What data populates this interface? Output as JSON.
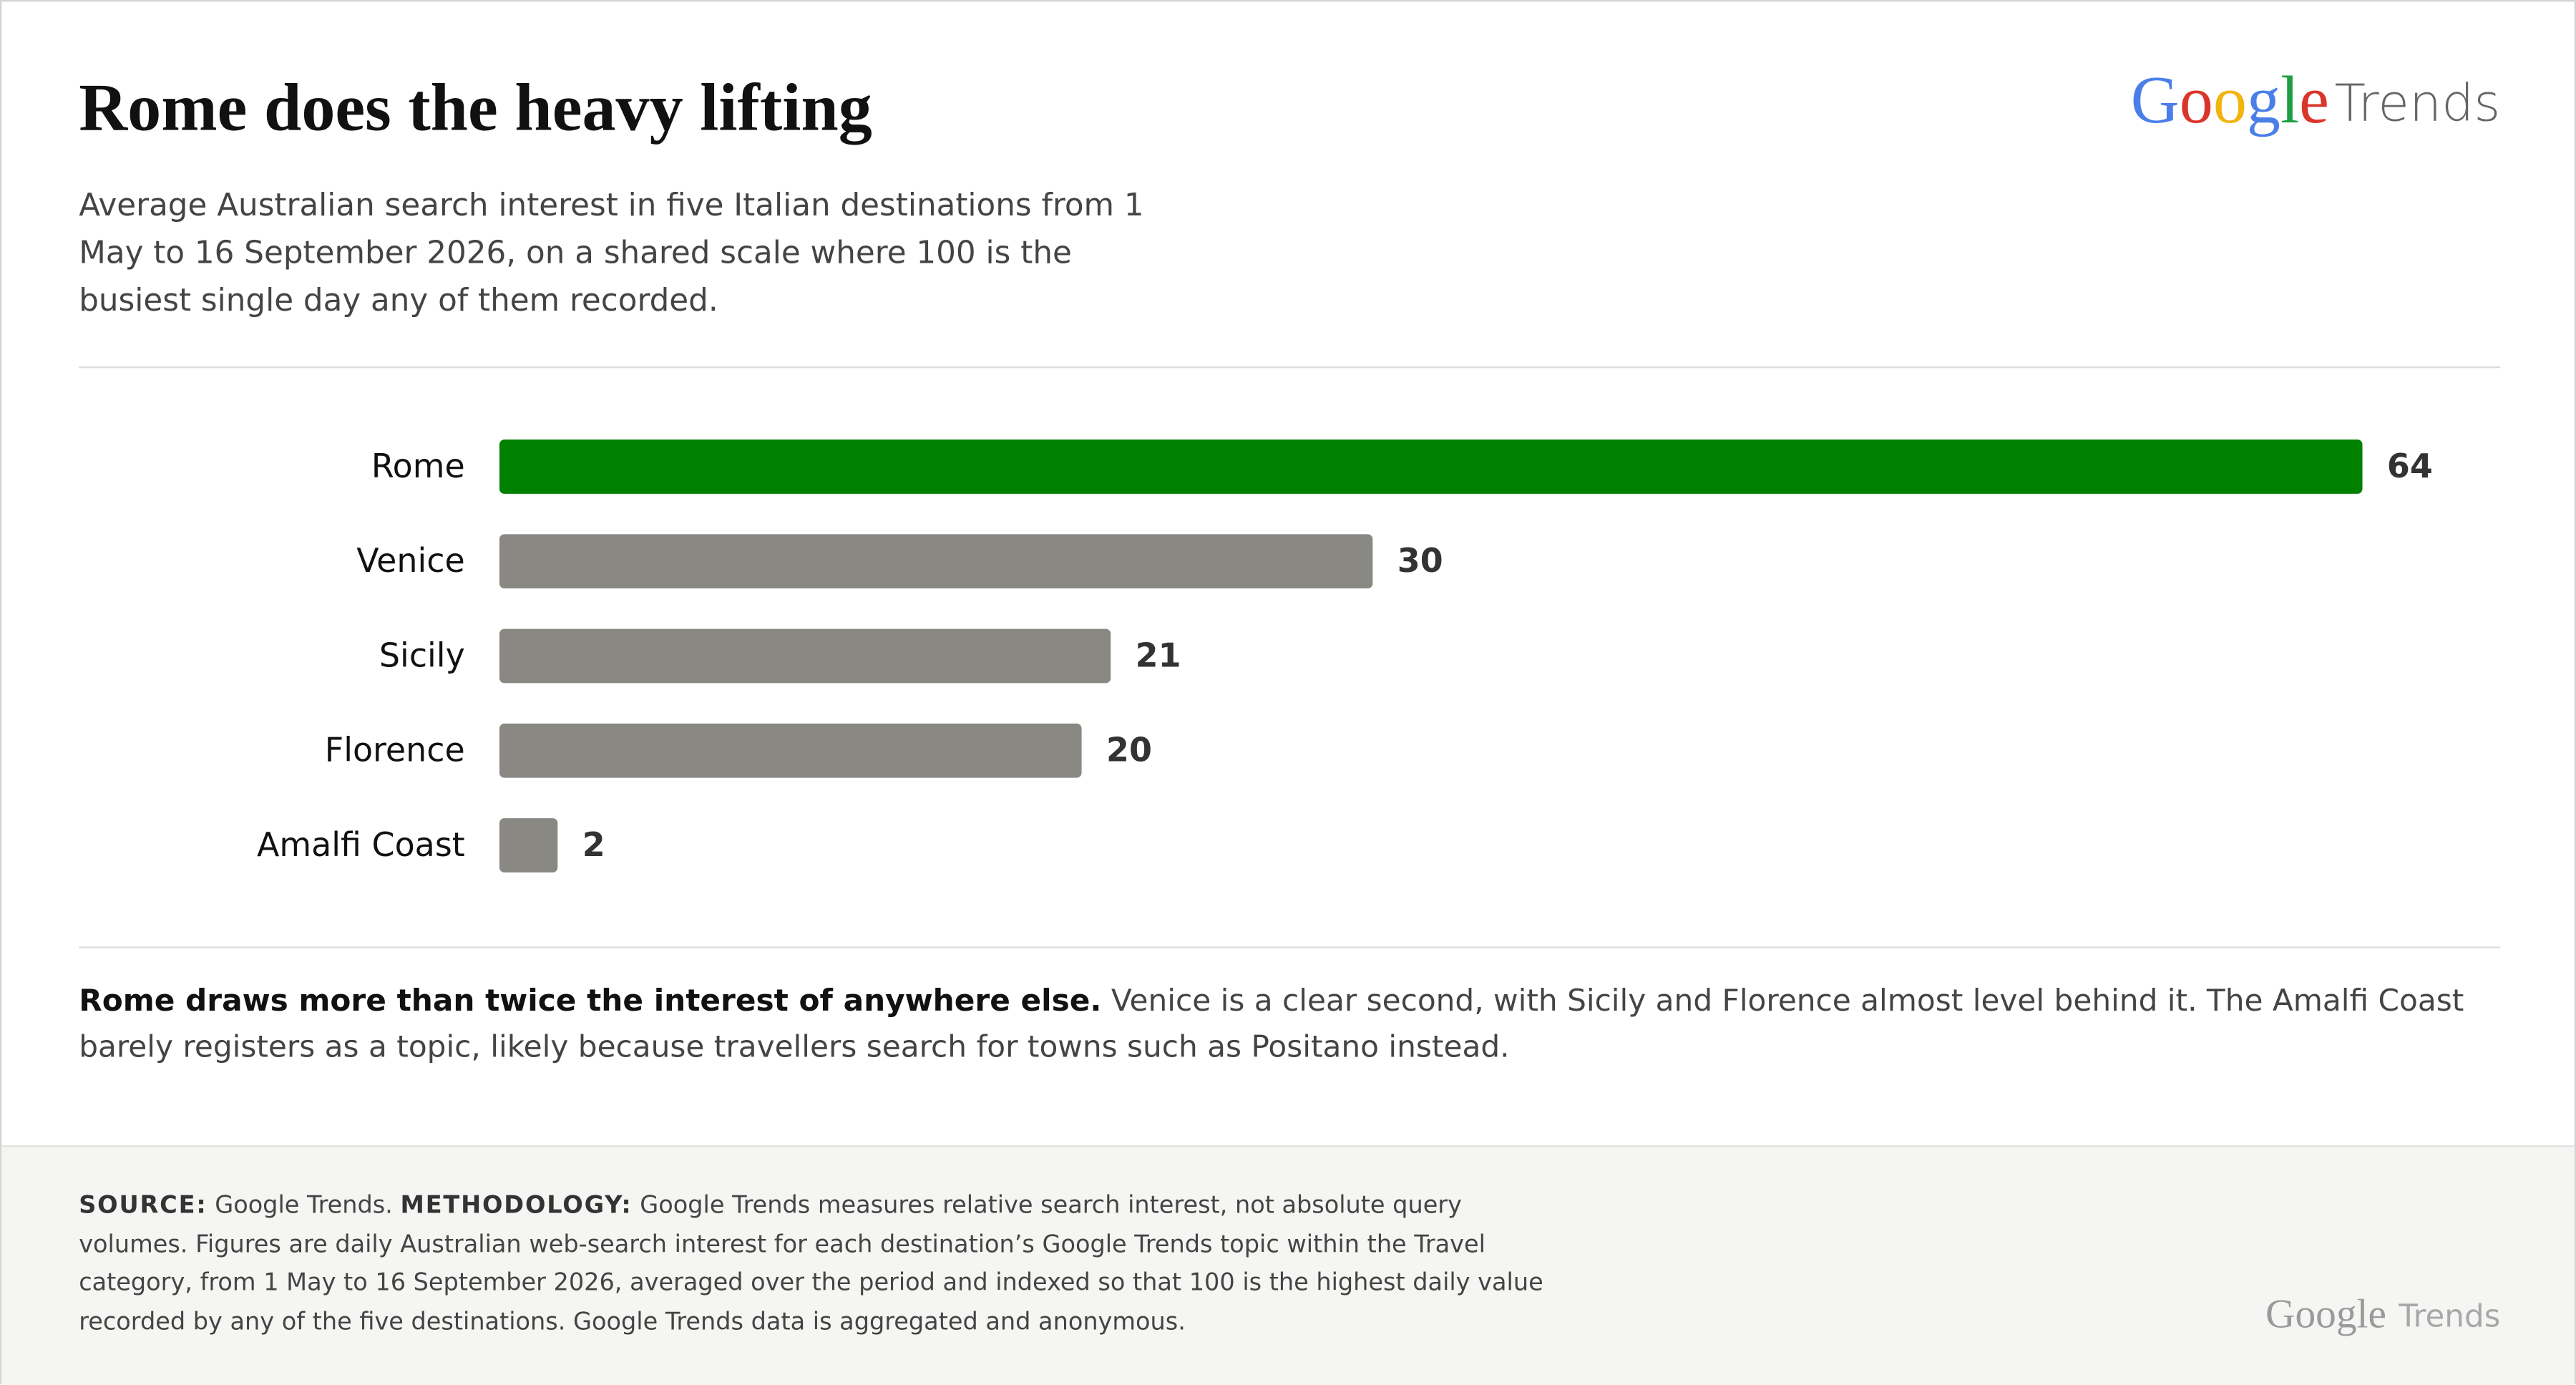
{
  "chart_data": {
    "type": "bar",
    "orientation": "horizontal",
    "title": "Rome does the heavy lifting",
    "subtitle": "Average Australian search interest in five Italian destinations from 1 May to 16 September 2026, on a shared scale where 100 is the busiest single day any of them recorded.",
    "categories": [
      "Rome",
      "Venice",
      "Sicily",
      "Florence",
      "Amalfi Coast"
    ],
    "values": [
      64,
      30,
      21,
      20,
      2
    ],
    "colors": [
      "#008000",
      "#898883",
      "#898883",
      "#898883",
      "#898883"
    ],
    "annotation": {
      "lead": "Rome draws more than twice the interest of anywhere else.",
      "text": "Venice is a clear second, with Sicily and Florence almost level behind it. The Amalfi Coast barely registers as a topic, likely because travellers search for towns such as Positano instead."
    }
  },
  "logo": {
    "google": "Google",
    "trends": "Trends"
  },
  "footer": {
    "source_label": "SOURCE:",
    "source": "Google Trends.",
    "methodology_label": "METHODOLOGY:",
    "methodology": "Google Trends measures relative search interest, not absolute query volumes. Figures are daily Australian web-search interest for each destination’s Google Trends topic within the Travel category, from 1 May to 16 September 2026, averaged over the period and indexed so that 100 is the highest daily value recorded by any of the five destinations. Google Trends data is aggregated and anonymous."
  }
}
